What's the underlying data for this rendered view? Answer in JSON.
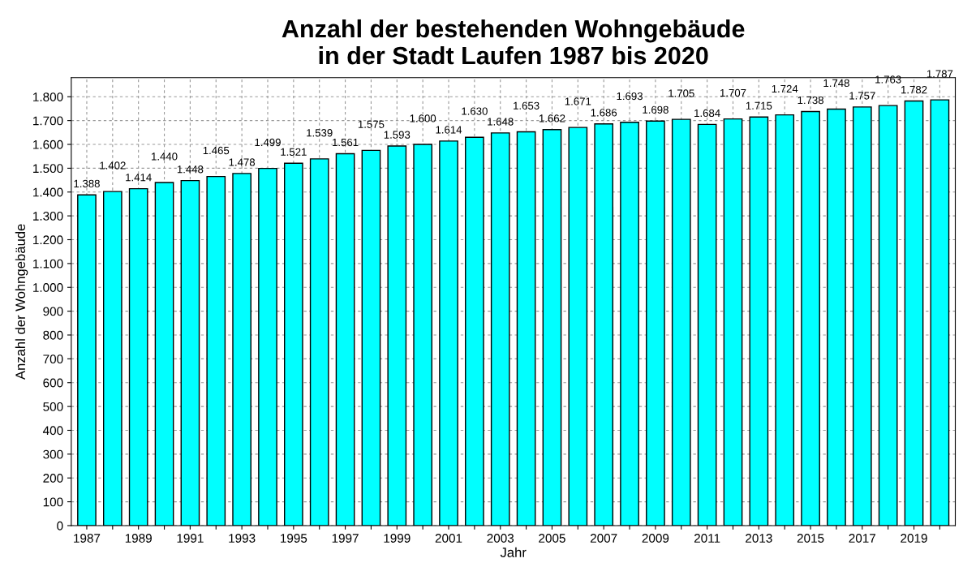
{
  "chart_data": {
    "type": "bar",
    "title": "Anzahl der bestehenden Wohngebäude\nin der Stadt Laufen 1987 bis 2020",
    "xlabel": "Jahr",
    "ylabel": "Anzahl der Wohngebäude",
    "categories": [
      "1987",
      null,
      "1989",
      null,
      "1991",
      null,
      "1993",
      null,
      "1995",
      null,
      "1997",
      null,
      "1999",
      null,
      "2001",
      null,
      "2003",
      null,
      "2005",
      null,
      "2007",
      null,
      "2009",
      null,
      "2011",
      null,
      "2013",
      null,
      "2015",
      null,
      "2017",
      null,
      "2019",
      null
    ],
    "values": [
      1388,
      1402,
      1414,
      1440,
      1448,
      1465,
      1478,
      1499,
      1521,
      1539,
      1561,
      1575,
      1593,
      1600,
      1614,
      1630,
      1648,
      1653,
      1662,
      1671,
      1686,
      1693,
      1698,
      1705,
      1684,
      1707,
      1715,
      1724,
      1738,
      1748,
      1757,
      1763,
      1782,
      1787
    ],
    "value_labels": [
      "1.388",
      "1.402",
      "1.414",
      "1.440",
      "1.448",
      "1.465",
      "1.478",
      "1.499",
      "1.521",
      "1.539",
      "1.561",
      "1.575",
      "1.593",
      "1.600",
      "1.614",
      "1.630",
      "1.648",
      "1.653",
      "1.662",
      "1.671",
      "1.686",
      "1.693",
      "1.698",
      "1.705",
      "1.684",
      "1.707",
      "1.715",
      "1.724",
      "1.738",
      "1.748",
      "1.757",
      "1.763",
      "1.782",
      "1.787"
    ],
    "color": "#00ffff",
    "ylim": [
      0,
      1880
    ],
    "yticks": [
      0,
      100,
      200,
      300,
      400,
      500,
      600,
      700,
      800,
      900,
      {
        "value": 1000,
        "label": "1.000"
      },
      {
        "value": 1100,
        "label": "1.100"
      },
      {
        "value": 1200,
        "label": "1.200"
      },
      {
        "value": 1300,
        "label": "1.300"
      },
      {
        "value": 1400,
        "label": "1.400"
      },
      {
        "value": 1500,
        "label": "1.500"
      },
      {
        "value": 1600,
        "label": "1.600"
      },
      {
        "value": 1700,
        "label": "1.700"
      },
      {
        "value": 1800,
        "label": "1.800"
      }
    ],
    "grid": true
  }
}
